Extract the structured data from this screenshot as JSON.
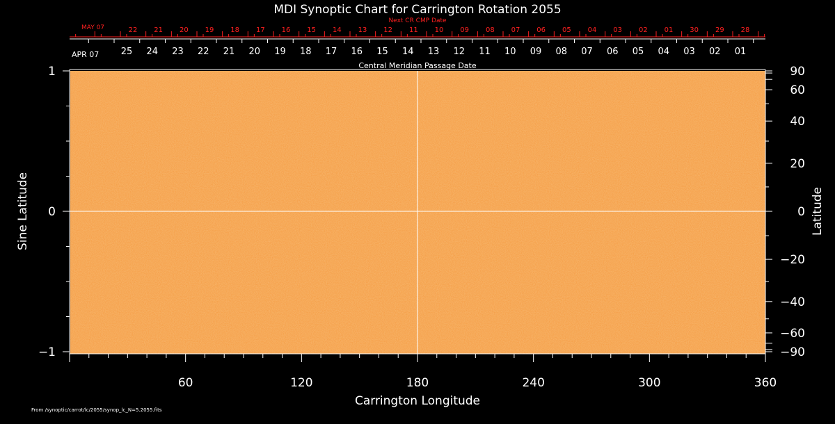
{
  "chart_data": {
    "type": "heatmap",
    "title": "MDI Synoptic Chart for Carrington Rotation 2055",
    "xlabel": "Carrington Longitude",
    "ylabel_left": "Sine Latitude",
    "ylabel_right": "Latitude",
    "xlim": [
      0,
      360
    ],
    "ylim": [
      -1,
      1
    ],
    "x_ticks": [
      60,
      120,
      180,
      240,
      300,
      360
    ],
    "y_left_ticks": [
      {
        "value": 1,
        "label": "1"
      },
      {
        "value": 0,
        "label": "0"
      },
      {
        "value": -1,
        "label": "−1"
      }
    ],
    "y_right_ticks": [
      {
        "deg": 90,
        "label": "90"
      },
      {
        "deg": 60,
        "label": "60"
      },
      {
        "deg": 40,
        "label": "40"
      },
      {
        "deg": 20,
        "label": "20"
      },
      {
        "deg": 0,
        "label": "0"
      },
      {
        "deg": -20,
        "label": "−20"
      },
      {
        "deg": -40,
        "label": "−40"
      },
      {
        "deg": -60,
        "label": "−60"
      },
      {
        "deg": -90,
        "label": "−90"
      }
    ],
    "reference_lines": {
      "x": 180,
      "y": 0
    },
    "field_color": "#f5a04a",
    "top_axis": {
      "label": "Central Meridian Passage Date",
      "month_label": "APR 07",
      "dates": [
        "25",
        "24",
        "23",
        "22",
        "21",
        "20",
        "19",
        "18",
        "17",
        "16",
        "15",
        "14",
        "13",
        "12",
        "11",
        "10",
        "09",
        "08",
        "07",
        "06",
        "05",
        "04",
        "03",
        "02",
        "01"
      ]
    },
    "next_cr_axis": {
      "label": "Next CR CMP Date",
      "month_label": "MAY 07",
      "dates": [
        "22",
        "21",
        "20",
        "19",
        "18",
        "17",
        "16",
        "15",
        "14",
        "13",
        "12",
        "11",
        "10",
        "09",
        "08",
        "07",
        "06",
        "05",
        "04",
        "03",
        "02",
        "01",
        "30",
        "29",
        "28"
      ]
    },
    "footer": "From /synoptic/carrot/lc/2055/synop_lc_N=5.2055.fits"
  },
  "colors": {
    "axis": "#ffffff",
    "next_cr": "#ff2020",
    "background": "#000000"
  }
}
